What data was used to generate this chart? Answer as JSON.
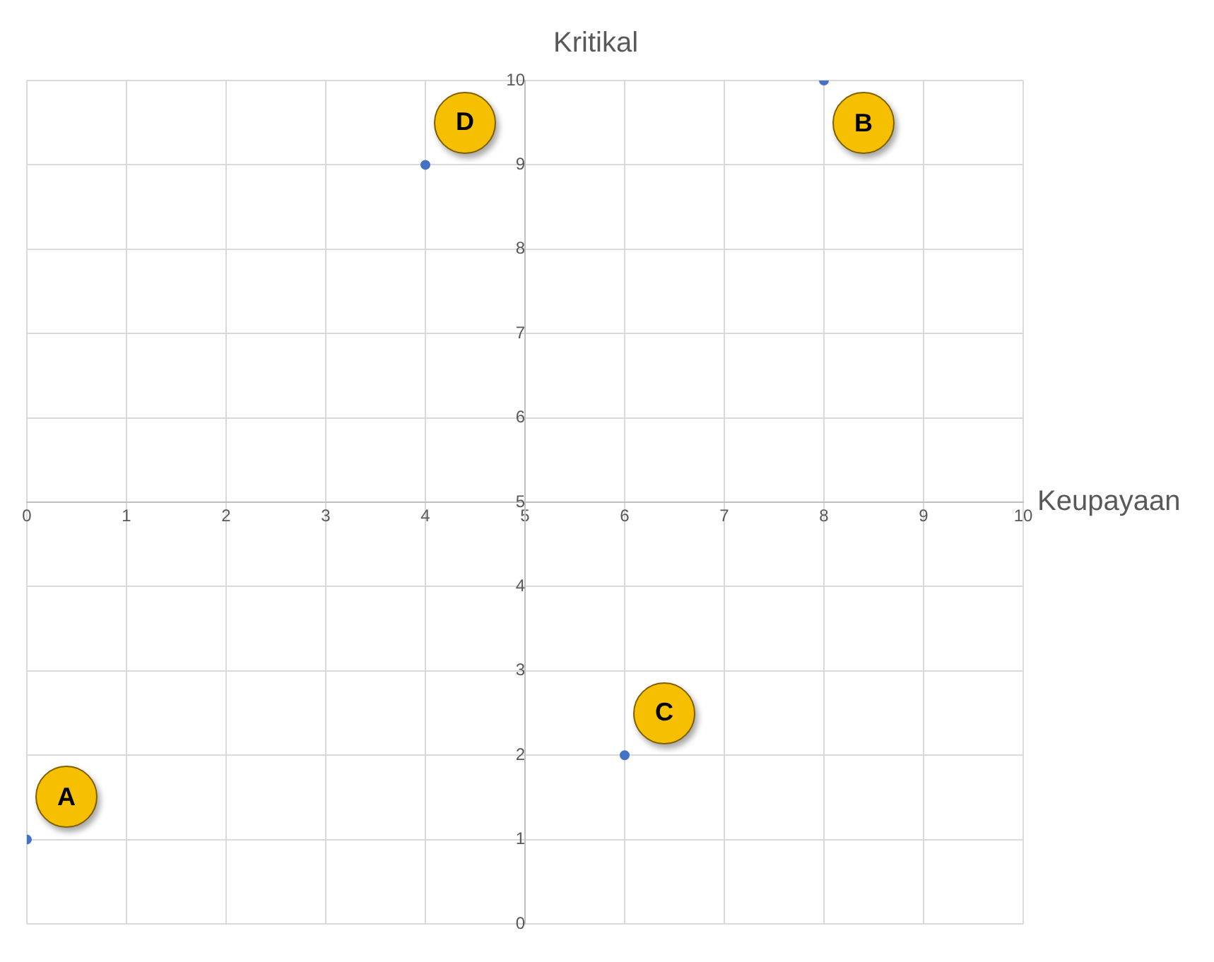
{
  "chart_data": {
    "type": "scatter",
    "xlabel": "Keupayaan",
    "ylabel": "Kritikal",
    "x": [
      0,
      4,
      8,
      6
    ],
    "values": [
      1,
      9,
      10,
      2
    ],
    "color": "#4472c4",
    "marker": "circle",
    "xlim": [
      0,
      10
    ],
    "xticks": [
      0,
      1,
      2,
      3,
      4,
      5,
      6,
      7,
      8,
      9,
      10
    ],
    "ylim": [
      0,
      10
    ],
    "yticks": [
      0,
      1,
      2,
      3,
      4,
      5,
      6,
      7,
      8,
      9,
      10
    ],
    "grid": true,
    "annotations": [
      "A",
      "D",
      "B",
      "C"
    ]
  }
}
